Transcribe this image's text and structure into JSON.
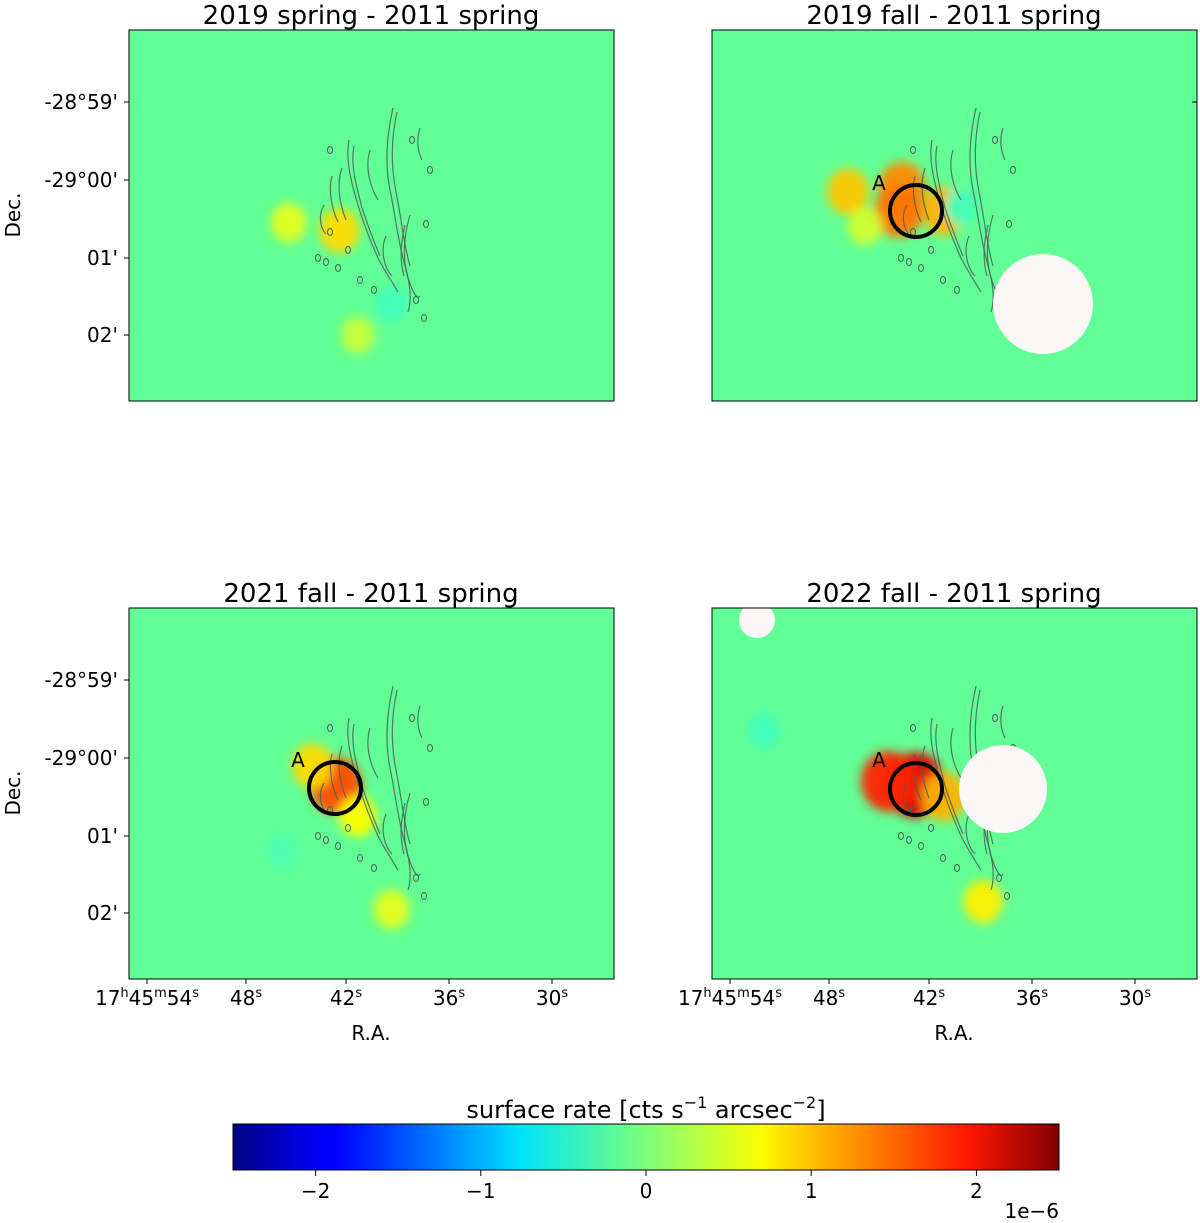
{
  "chart_data": {
    "type": "heatmap",
    "colormap": "jet",
    "panels": [
      {
        "title": "2019 spring - 2011 spring",
        "ylabel": "Dec.",
        "xlabel": "",
        "yticks": [
          "-28°59'",
          "-29°00'",
          "01'",
          "02'"
        ],
        "xticks": [],
        "regions": [],
        "excluded_regions": 0,
        "blobs": [
          {
            "ra_s": 42.6,
            "dec_arcmin": -0.65,
            "value": 0.8
          },
          {
            "ra_s": 45.6,
            "dec_arcmin": -0.55,
            "value": 0.5
          },
          {
            "ra_s": 39.5,
            "dec_arcmin": -1.6,
            "value": -0.3
          },
          {
            "ra_s": 41.5,
            "dec_arcmin": -2.0,
            "value": 0.35
          }
        ]
      },
      {
        "title": "2019 fall - 2011 spring",
        "ylabel": "",
        "xlabel": "",
        "yticks": [],
        "xticks": [],
        "regions": [
          {
            "label": "A"
          }
        ],
        "excluded_regions": 1,
        "blobs": [
          {
            "ra_s": 43.8,
            "dec_arcmin": -0.1,
            "value": 1.2
          },
          {
            "ra_s": 44.0,
            "dec_arcmin": -0.4,
            "value": 1.3
          },
          {
            "ra_s": 47.0,
            "dec_arcmin": -0.15,
            "value": 0.9
          },
          {
            "ra_s": 41.3,
            "dec_arcmin": -0.4,
            "value": 1.0
          },
          {
            "ra_s": 46.0,
            "dec_arcmin": -0.6,
            "value": 0.4
          },
          {
            "ra_s": 40.3,
            "dec_arcmin": -0.35,
            "value": -0.3
          }
        ]
      },
      {
        "title": "2021 fall - 2011 spring",
        "ylabel": "Dec.",
        "xlabel": "R.A.",
        "yticks": [
          "-28°59'",
          "-29°00'",
          "01'",
          "02'"
        ],
        "xticks": [
          "17h45m54s",
          "48s",
          "42s",
          "36s",
          "30s"
        ],
        "regions": [
          {
            "label": "A"
          }
        ],
        "excluded_regions": 0,
        "blobs": [
          {
            "ra_s": 42.8,
            "dec_arcmin": -0.35,
            "value": 1.5
          },
          {
            "ra_s": 44.2,
            "dec_arcmin": -0.1,
            "value": 0.8
          },
          {
            "ra_s": 41.5,
            "dec_arcmin": -0.75,
            "value": 0.6
          },
          {
            "ra_s": 39.5,
            "dec_arcmin": -1.95,
            "value": 0.5
          },
          {
            "ra_s": 46.0,
            "dec_arcmin": -1.2,
            "value": -0.25
          }
        ]
      },
      {
        "title": "2022 fall - 2011 spring",
        "ylabel": "",
        "xlabel": "R.A.",
        "yticks": [],
        "xticks": [
          "17h45m54s",
          "48s",
          "42s",
          "36s",
          "30s"
        ],
        "regions": [
          {
            "label": "A"
          }
        ],
        "excluded_regions": 2,
        "blobs": [
          {
            "ra_s": 43.0,
            "dec_arcmin": -0.35,
            "value": 2.0
          },
          {
            "ra_s": 44.6,
            "dec_arcmin": -0.3,
            "value": 1.7
          },
          {
            "ra_s": 41.3,
            "dec_arcmin": -0.5,
            "value": 1.0
          },
          {
            "ra_s": 39.0,
            "dec_arcmin": -1.85,
            "value": 0.7
          },
          {
            "ra_s": 52.0,
            "dec_arcmin": 0.35,
            "value": -0.3
          }
        ]
      }
    ],
    "colorbar": {
      "label": "surface rate [cts s⁻¹ arcsec⁻²]",
      "range": [
        -2.5,
        2.5
      ],
      "ticks": [
        "−2",
        "−1",
        "0",
        "1",
        "2"
      ],
      "tick_values": [
        -2,
        -1,
        0,
        1,
        2
      ],
      "offset_text": "1e−6"
    },
    "colors": {
      "background": "#61ff95",
      "contour": "#4f5f55",
      "mask": "#faf7f6"
    }
  }
}
